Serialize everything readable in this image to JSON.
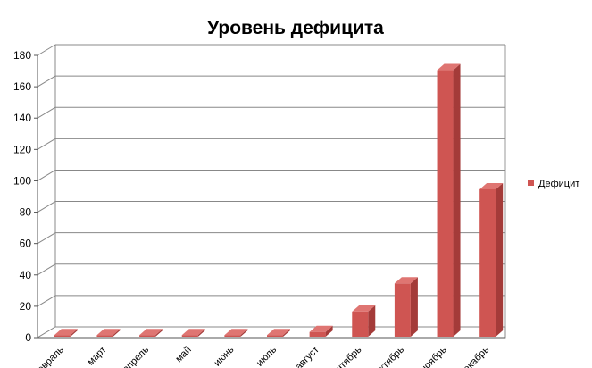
{
  "chart_data": {
    "type": "bar",
    "title": "Уровень дефицита",
    "categories": [
      "февраль",
      "март",
      "апрель",
      "май",
      "июнь",
      "июль",
      "август",
      "сентябрь",
      "октябрь",
      "ноябрь",
      "декабрь"
    ],
    "series": [
      {
        "name": "Дефицит",
        "values": [
          1,
          1,
          1,
          1,
          1,
          1,
          3,
          16,
          34,
          170,
          94
        ]
      }
    ],
    "ylim": [
      0,
      180
    ],
    "yticks": [
      "0",
      "20",
      "40",
      "60",
      "80",
      "100",
      "120",
      "140",
      "160",
      "180"
    ],
    "legend_position": "right",
    "grid": true,
    "colors": {
      "bar_front": "#cf5552",
      "bar_side": "#a43b39",
      "bar_top": "#df7572"
    }
  }
}
